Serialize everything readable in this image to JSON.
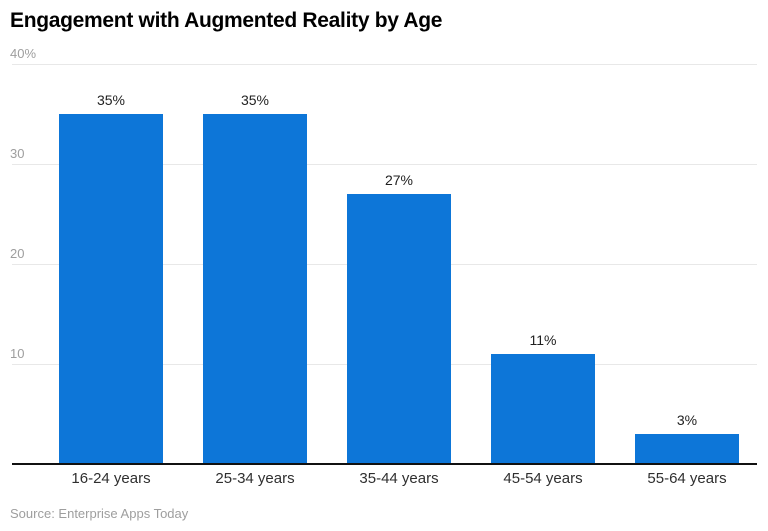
{
  "title": "Engagement with Augmented Reality by Age",
  "source": "Source: Enterprise Apps Today",
  "colors": {
    "background": "#ffffff",
    "bar": "#0d76d8",
    "grid_line": "#e8e8e8",
    "axis_line": "#111111",
    "title": "#000000",
    "y_label": "#9e9e9e",
    "x_label": "#2f2f2f",
    "value_label": "#1f1f1f",
    "source": "#9e9e9e"
  },
  "chart_data": {
    "type": "bar",
    "title": "Engagement with Augmented Reality by Age",
    "categories": [
      "16-24 years",
      "25-34 years",
      "35-44 years",
      "45-54 years",
      "55-64 years"
    ],
    "values": [
      35,
      35,
      27,
      11,
      3
    ],
    "value_labels": [
      "35%",
      "35%",
      "27%",
      "11%",
      "3%"
    ],
    "xlabel": "",
    "ylabel": "",
    "ylim": [
      0,
      40
    ],
    "y_ticks": [
      {
        "value": 40,
        "label": "40%"
      },
      {
        "value": 30,
        "label": "30"
      },
      {
        "value": 20,
        "label": "20"
      },
      {
        "value": 10,
        "label": "10"
      }
    ],
    "grid": true,
    "legend": false,
    "source": "Source: Enterprise Apps Today"
  }
}
